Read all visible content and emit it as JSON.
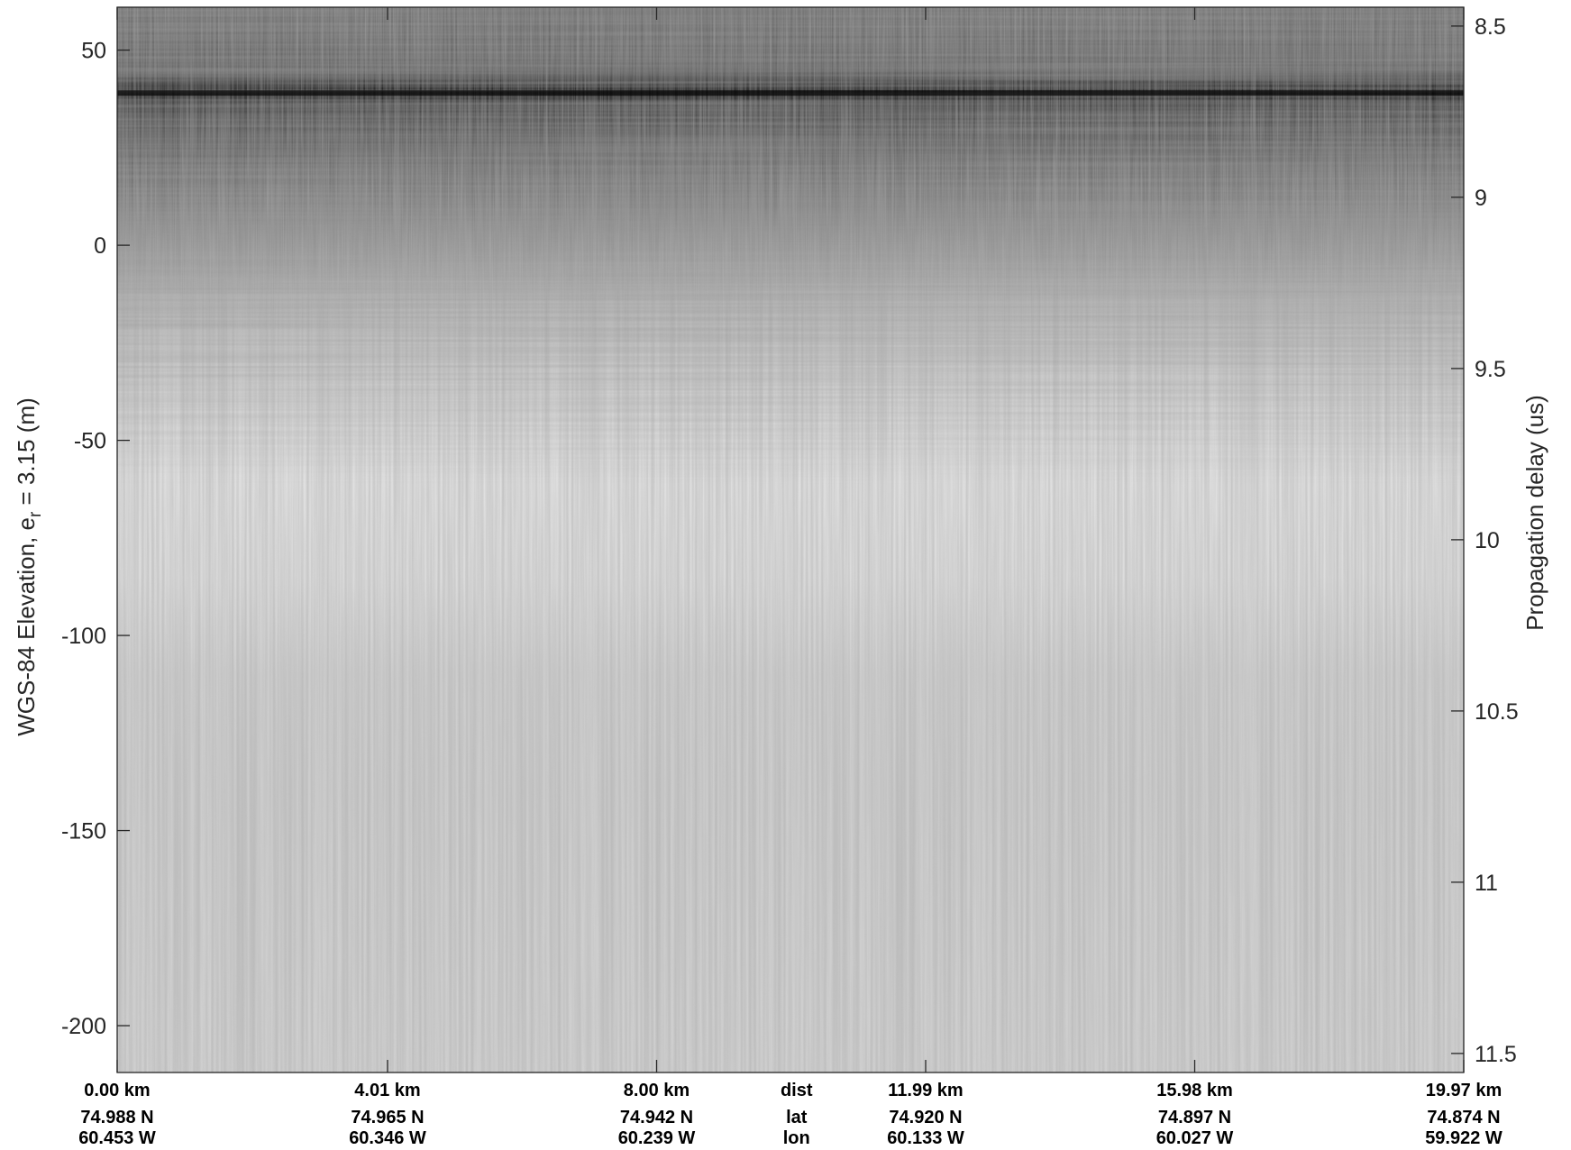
{
  "chart_data": {
    "type": "heatmap",
    "title": "",
    "colormap": "grayscale",
    "grid": false,
    "ylabel_left": {
      "main": "WGS-84 Elevation, e",
      "sub": "r",
      "rest": " = 3.15 (m)"
    },
    "ylabel_right": "Propagation delay (us)",
    "ylim_left": [
      -212,
      61
    ],
    "ylim_right": [
      8.445,
      11.5556
    ],
    "left_ticks": [
      {
        "value": 50,
        "label": "50"
      },
      {
        "value": 0,
        "label": "0"
      },
      {
        "value": -50,
        "label": "-50"
      },
      {
        "value": -100,
        "label": "-100"
      },
      {
        "value": -150,
        "label": "-150"
      },
      {
        "value": -200,
        "label": "-200"
      }
    ],
    "right_ticks": [
      {
        "value": 8.5,
        "label": "8.5"
      },
      {
        "value": 9,
        "label": "9"
      },
      {
        "value": 9.5,
        "label": "9.5"
      },
      {
        "value": 10,
        "label": "10"
      },
      {
        "value": 10.5,
        "label": "10.5"
      },
      {
        "value": 11,
        "label": "11"
      },
      {
        "value": 11.5,
        "label": "11.5"
      }
    ],
    "xlim_km": [
      0.0,
      19.97
    ],
    "x_ticks": [
      {
        "dist_km": 0.0,
        "dist": "0.00 km",
        "lat": "74.988 N",
        "lon": "60.453 W"
      },
      {
        "dist_km": 4.01,
        "dist": "4.01 km",
        "lat": "74.965 N",
        "lon": "60.346 W"
      },
      {
        "dist_km": 8.0,
        "dist": "8.00 km",
        "lat": "74.942 N",
        "lon": "60.239 W"
      },
      {
        "dist_km": 11.99,
        "dist": "11.99 km",
        "lat": "74.920 N",
        "lon": "60.133 W"
      },
      {
        "dist_km": 15.98,
        "dist": "15.98 km",
        "lat": "74.897 N",
        "lon": "60.027 W"
      },
      {
        "dist_km": 19.97,
        "dist": "19.97 km",
        "lat": "74.874 N",
        "lon": "59.922 W"
      }
    ],
    "row_labels": {
      "dist": "dist",
      "lat": "lat",
      "lon": "lon"
    },
    "intensity_profile": [
      {
        "elevation": 61,
        "gray": 112
      },
      {
        "elevation": 45,
        "gray": 100
      },
      {
        "elevation": 41.5,
        "gray": 60
      },
      {
        "elevation": 39,
        "gray": 18
      },
      {
        "elevation": 36.5,
        "gray": 70
      },
      {
        "elevation": 30,
        "gray": 88
      },
      {
        "elevation": 20,
        "gray": 112
      },
      {
        "elevation": 5,
        "gray": 140
      },
      {
        "elevation": -15,
        "gray": 180
      },
      {
        "elevation": -35,
        "gray": 205
      },
      {
        "elevation": -60,
        "gray": 224
      },
      {
        "elevation": -85,
        "gray": 220
      },
      {
        "elevation": -110,
        "gray": 206
      },
      {
        "elevation": -140,
        "gray": 204
      },
      {
        "elevation": -212,
        "gray": 208
      }
    ],
    "reflector_elevation": 39
  }
}
